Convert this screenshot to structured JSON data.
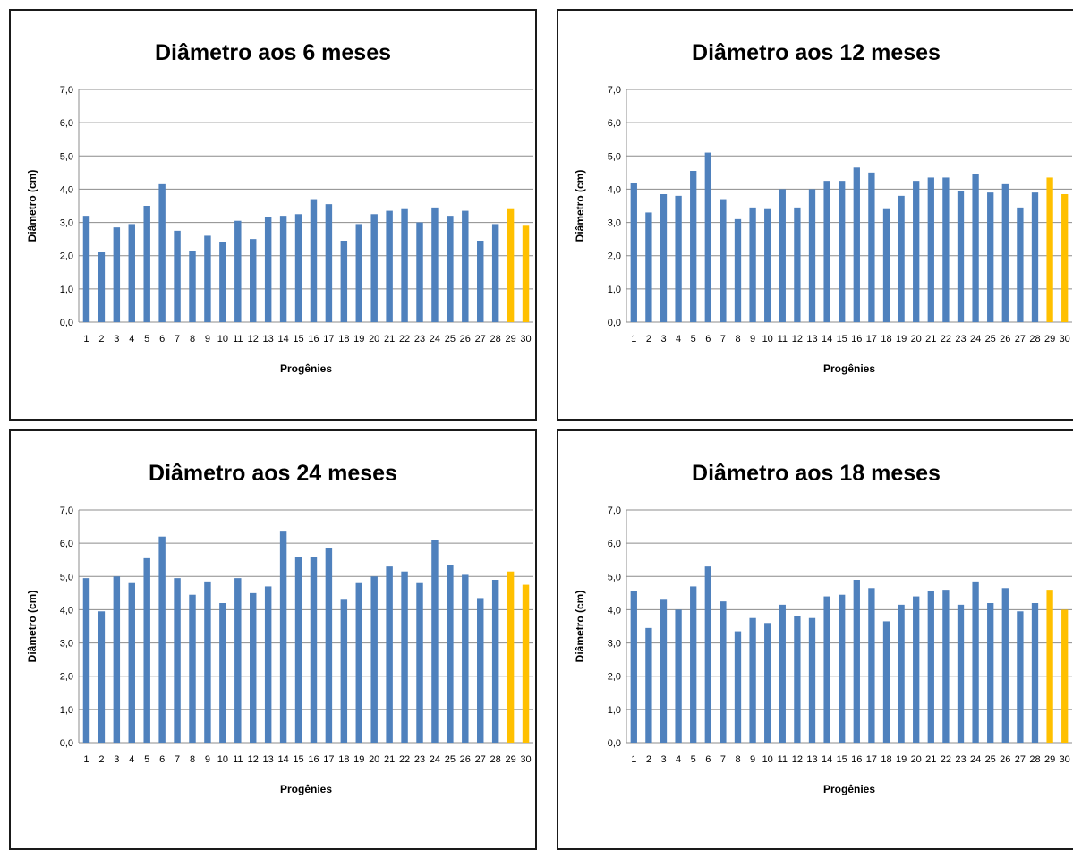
{
  "colors": {
    "bar": "#4f81bd",
    "highlight": "#ffc000",
    "grid": "#8c8c8c"
  },
  "chart_data": [
    {
      "type": "bar",
      "title": "Diâmetro aos 6 meses",
      "xlabel": "Progênies",
      "ylabel": "Diâmetro (cm)",
      "ylim": [
        0,
        7
      ],
      "yticks": [
        "0,0",
        "1,0",
        "2,0",
        "3,0",
        "4,0",
        "5,0",
        "6,0",
        "7,0"
      ],
      "categories": [
        "1",
        "2",
        "3",
        "4",
        "5",
        "6",
        "7",
        "8",
        "9",
        "10",
        "11",
        "12",
        "13",
        "14",
        "15",
        "16",
        "17",
        "18",
        "19",
        "20",
        "21",
        "22",
        "23",
        "24",
        "25",
        "26",
        "27",
        "28",
        "29",
        "30"
      ],
      "values": [
        3.2,
        2.1,
        2.85,
        2.95,
        3.5,
        4.15,
        2.75,
        2.15,
        2.6,
        2.4,
        3.05,
        2.5,
        3.15,
        3.2,
        3.25,
        3.7,
        3.55,
        2.45,
        2.95,
        3.25,
        3.35,
        3.4,
        3.0,
        3.45,
        3.2,
        3.35,
        2.45,
        2.95,
        3.4,
        2.9
      ],
      "highlighted": [
        "29",
        "30"
      ],
      "grid": true
    },
    {
      "type": "bar",
      "title": "Diâmetro aos 12 meses",
      "xlabel": "Progênies",
      "ylabel": "Diâmetro (cm)",
      "ylim": [
        0,
        7
      ],
      "yticks": [
        "0,0",
        "1,0",
        "2,0",
        "3,0",
        "4,0",
        "5,0",
        "6,0",
        "7,0"
      ],
      "categories": [
        "1",
        "2",
        "3",
        "4",
        "5",
        "6",
        "7",
        "8",
        "9",
        "10",
        "11",
        "12",
        "13",
        "14",
        "15",
        "16",
        "17",
        "18",
        "19",
        "20",
        "21",
        "22",
        "23",
        "24",
        "25",
        "26",
        "27",
        "28",
        "29",
        "30"
      ],
      "values": [
        4.2,
        3.3,
        3.85,
        3.8,
        4.55,
        5.1,
        3.7,
        3.1,
        3.45,
        3.4,
        4.0,
        3.45,
        4.0,
        4.25,
        4.25,
        4.65,
        4.5,
        3.4,
        3.8,
        4.25,
        4.35,
        4.35,
        3.95,
        4.45,
        3.9,
        4.15,
        3.45,
        3.9,
        4.35,
        3.85
      ],
      "highlighted": [
        "29",
        "30"
      ],
      "grid": true
    },
    {
      "type": "bar",
      "title": "Diâmetro aos 24 meses",
      "xlabel": "Progênies",
      "ylabel": "Diâmetro (cm)",
      "ylim": [
        0,
        7
      ],
      "yticks": [
        "0,0",
        "1,0",
        "2,0",
        "3,0",
        "4,0",
        "5,0",
        "6,0",
        "7,0"
      ],
      "categories": [
        "1",
        "2",
        "3",
        "4",
        "5",
        "6",
        "7",
        "8",
        "9",
        "10",
        "11",
        "12",
        "13",
        "14",
        "15",
        "16",
        "17",
        "18",
        "19",
        "20",
        "21",
        "22",
        "23",
        "24",
        "25",
        "26",
        "27",
        "28",
        "29",
        "30"
      ],
      "values": [
        4.95,
        3.95,
        5.0,
        4.8,
        5.55,
        6.2,
        4.95,
        4.45,
        4.85,
        4.2,
        4.95,
        4.5,
        4.7,
        6.35,
        5.6,
        5.6,
        5.85,
        4.3,
        4.8,
        5.0,
        5.3,
        5.15,
        4.8,
        6.1,
        5.35,
        5.05,
        4.35,
        4.9,
        5.15,
        4.75
      ],
      "highlighted": [
        "29",
        "30"
      ],
      "grid": true
    },
    {
      "type": "bar",
      "title": "Diâmetro aos 18 meses",
      "xlabel": "Progênies",
      "ylabel": "Diâmetro (cm)",
      "ylim": [
        0,
        7
      ],
      "yticks": [
        "0,0",
        "1,0",
        "2,0",
        "3,0",
        "4,0",
        "5,0",
        "6,0",
        "7,0"
      ],
      "categories": [
        "1",
        "2",
        "3",
        "4",
        "5",
        "6",
        "7",
        "8",
        "9",
        "10",
        "11",
        "12",
        "13",
        "14",
        "15",
        "16",
        "17",
        "18",
        "19",
        "20",
        "21",
        "22",
        "23",
        "24",
        "25",
        "26",
        "27",
        "28",
        "29",
        "30"
      ],
      "values": [
        4.55,
        3.45,
        4.3,
        4.0,
        4.7,
        5.3,
        4.25,
        3.35,
        3.75,
        3.6,
        4.15,
        3.8,
        3.75,
        4.4,
        4.45,
        4.9,
        4.65,
        3.65,
        4.15,
        4.4,
        4.55,
        4.6,
        4.15,
        4.85,
        4.2,
        4.65,
        3.95,
        4.2,
        4.6,
        4.0
      ],
      "highlighted": [
        "29",
        "30"
      ],
      "grid": true
    }
  ]
}
